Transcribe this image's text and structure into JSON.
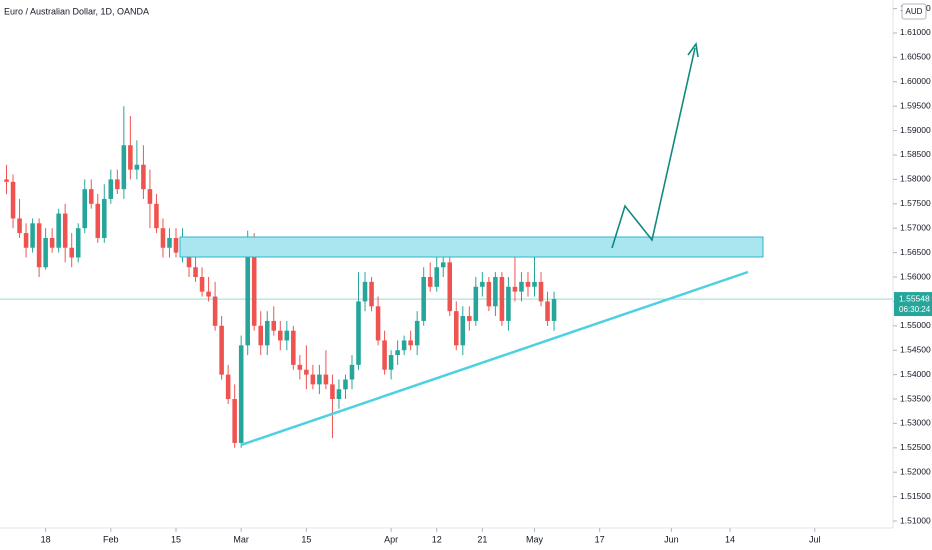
{
  "chart_data": {
    "type": "candlestick",
    "title": "Euro / Australian Dollar, 1D, OANDA",
    "currency": "AUD",
    "up_color": "#26a69a",
    "down_color": "#ef5350",
    "open": [
      1.58,
      1.5795,
      1.572,
      1.569,
      1.566,
      1.571,
      1.562,
      1.568,
      1.566,
      1.573,
      1.566,
      1.564,
      1.57,
      1.578,
      1.575,
      1.568,
      1.576,
      1.58,
      1.578,
      1.587,
      1.582,
      1.583,
      1.578,
      1.575,
      1.57,
      1.566,
      1.568,
      1.565,
      1.566,
      1.562,
      1.56,
      1.557,
      1.556,
      1.55,
      1.54,
      1.535,
      1.526,
      1.546,
      1.568,
      1.55,
      1.546,
      1.551,
      1.549,
      1.547,
      1.549,
      1.542,
      1.541,
      1.54,
      1.538,
      1.54,
      1.538,
      1.535,
      1.537,
      1.539,
      1.542,
      1.555,
      1.559,
      1.554,
      1.547,
      1.541,
      1.544,
      1.545,
      1.547,
      1.546,
      1.551,
      1.56,
      1.558,
      1.562,
      1.563,
      1.553,
      1.546,
      1.552,
      1.551,
      1.558,
      1.559,
      1.554,
      1.56,
      1.551,
      1.558,
      1.557,
      1.559,
      1.558,
      1.559,
      1.555,
      1.551
    ],
    "high": [
      1.583,
      1.581,
      1.576,
      1.571,
      1.572,
      1.572,
      1.57,
      1.57,
      1.574,
      1.575,
      1.569,
      1.571,
      1.58,
      1.58,
      1.577,
      1.579,
      1.582,
      1.582,
      1.595,
      1.593,
      1.588,
      1.587,
      1.582,
      1.577,
      1.572,
      1.57,
      1.57,
      1.57,
      1.568,
      1.564,
      1.562,
      1.56,
      1.559,
      1.552,
      1.542,
      1.538,
      1.548,
      1.5695,
      1.569,
      1.553,
      1.553,
      1.554,
      1.551,
      1.551,
      1.55,
      1.544,
      1.546,
      1.542,
      1.542,
      1.545,
      1.54,
      1.539,
      1.54,
      1.544,
      1.561,
      1.561,
      1.56,
      1.556,
      1.549,
      1.545,
      1.547,
      1.548,
      1.549,
      1.553,
      1.562,
      1.563,
      1.567,
      1.5675,
      1.564,
      1.555,
      1.554,
      1.554,
      1.56,
      1.561,
      1.56,
      1.561,
      1.561,
      1.56,
      1.564,
      1.561,
      1.561,
      1.564,
      1.561,
      1.557,
      1.557
    ],
    "low": [
      1.577,
      1.57,
      1.568,
      1.564,
      1.565,
      1.56,
      1.5615,
      1.565,
      1.565,
      1.563,
      1.562,
      1.563,
      1.569,
      1.574,
      1.567,
      1.567,
      1.575,
      1.577,
      1.576,
      1.58,
      1.58,
      1.576,
      1.57,
      1.569,
      1.564,
      1.564,
      1.564,
      1.563,
      1.56,
      1.559,
      1.556,
      1.555,
      1.549,
      1.539,
      1.534,
      1.525,
      1.525,
      1.544,
      1.549,
      1.544,
      1.544,
      1.548,
      1.545,
      1.545,
      1.541,
      1.539,
      1.537,
      1.537,
      1.536,
      1.537,
      1.527,
      1.533,
      1.535,
      1.537,
      1.541,
      1.553,
      1.553,
      1.546,
      1.54,
      1.539,
      1.542,
      1.544,
      1.545,
      1.544,
      1.55,
      1.557,
      1.557,
      1.56,
      1.552,
      1.545,
      1.544,
      1.549,
      1.55,
      1.556,
      1.553,
      1.552,
      1.55,
      1.549,
      1.555,
      1.555,
      1.556,
      1.556,
      1.554,
      1.55,
      1.549
    ],
    "close": [
      1.5795,
      1.572,
      1.569,
      1.566,
      1.571,
      1.562,
      1.568,
      1.566,
      1.573,
      1.566,
      1.564,
      1.57,
      1.578,
      1.575,
      1.568,
      1.576,
      1.58,
      1.578,
      1.587,
      1.582,
      1.583,
      1.578,
      1.575,
      1.57,
      1.566,
      1.568,
      1.565,
      1.566,
      1.562,
      1.56,
      1.557,
      1.556,
      1.55,
      1.54,
      1.535,
      1.526,
      1.546,
      1.568,
      1.55,
      1.546,
      1.551,
      1.549,
      1.547,
      1.549,
      1.542,
      1.541,
      1.54,
      1.538,
      1.54,
      1.538,
      1.535,
      1.537,
      1.539,
      1.542,
      1.555,
      1.559,
      1.554,
      1.547,
      1.541,
      1.544,
      1.545,
      1.547,
      1.546,
      1.551,
      1.56,
      1.558,
      1.562,
      1.563,
      1.553,
      1.546,
      1.552,
      1.551,
      1.558,
      1.559,
      1.554,
      1.56,
      1.551,
      1.558,
      1.557,
      1.559,
      1.558,
      1.559,
      1.555,
      1.551,
      1.55548
    ],
    "last_price": 1.55548,
    "countdown": "06:30:24",
    "xlim": [
      -1,
      136
    ],
    "xticks": [
      {
        "value": 6,
        "label": "18"
      },
      {
        "value": 16,
        "label": "Feb"
      },
      {
        "value": 26,
        "label": "15"
      },
      {
        "value": 36,
        "label": "Mar"
      },
      {
        "value": 46,
        "label": "15"
      },
      {
        "value": 59,
        "label": "Apr"
      },
      {
        "value": 66,
        "label": "12"
      },
      {
        "value": 73,
        "label": "21"
      },
      {
        "value": 81,
        "label": "May"
      },
      {
        "value": 91,
        "label": "17"
      },
      {
        "value": 102,
        "label": "Jun"
      },
      {
        "value": 111,
        "label": "14"
      },
      {
        "value": 124,
        "label": "Jul"
      }
    ],
    "ylim": [
      1.50857,
      1.61676
    ],
    "yticks": [
      {
        "value": 1.51,
        "label": "1.51000"
      },
      {
        "value": 1.515,
        "label": "1.51500"
      },
      {
        "value": 1.52,
        "label": "1.52000"
      },
      {
        "value": 1.525,
        "label": "1.52500"
      },
      {
        "value": 1.53,
        "label": "1.53000"
      },
      {
        "value": 1.535,
        "label": "1.53500"
      },
      {
        "value": 1.54,
        "label": "1.54000"
      },
      {
        "value": 1.545,
        "label": "1.54500"
      },
      {
        "value": 1.55,
        "label": "1.55000"
      },
      {
        "value": 1.555,
        "label": "1.55500"
      },
      {
        "value": 1.56,
        "label": "1.56000"
      },
      {
        "value": 1.565,
        "label": "1.56500"
      },
      {
        "value": 1.57,
        "label": "1.57000"
      },
      {
        "value": 1.575,
        "label": "1.57500"
      },
      {
        "value": 1.58,
        "label": "1.58000"
      },
      {
        "value": 1.585,
        "label": "1.58500"
      },
      {
        "value": 1.59,
        "label": "1.59000"
      },
      {
        "value": 1.595,
        "label": "1.59500"
      },
      {
        "value": 1.6,
        "label": "1.60000"
      },
      {
        "value": 1.605,
        "label": "1.60500"
      },
      {
        "value": 1.61,
        "label": "1.61000"
      },
      {
        "value": 1.615,
        "label": "1.61500"
      }
    ]
  }
}
